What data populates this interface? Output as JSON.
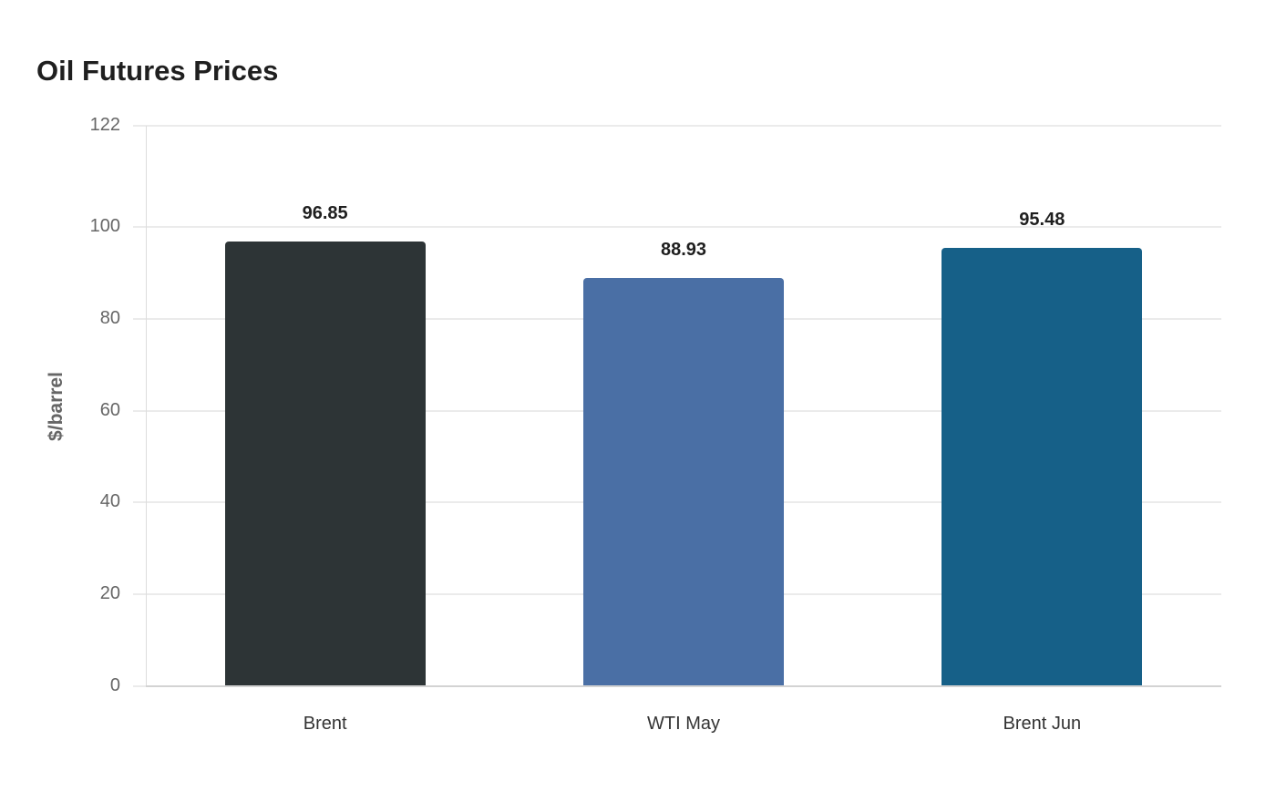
{
  "chart_data": {
    "type": "bar",
    "title": "Oil Futures Prices",
    "xlabel": "",
    "ylabel": "$/barrel",
    "categories": [
      "Brent",
      "WTI May",
      "Brent Jun"
    ],
    "values": [
      96.85,
      88.93,
      95.48
    ],
    "value_labels": [
      "96.85",
      "88.93",
      "95.48"
    ],
    "colors": [
      "#2d3436",
      "#4a6fa5",
      "#166088"
    ],
    "ylim": [
      0,
      122
    ],
    "yticks": [
      0,
      20,
      40,
      60,
      80,
      100,
      122
    ],
    "ytick_labels": [
      "0",
      "20",
      "40",
      "60",
      "80",
      "100",
      "122"
    ],
    "grid": true,
    "legend": null
  }
}
